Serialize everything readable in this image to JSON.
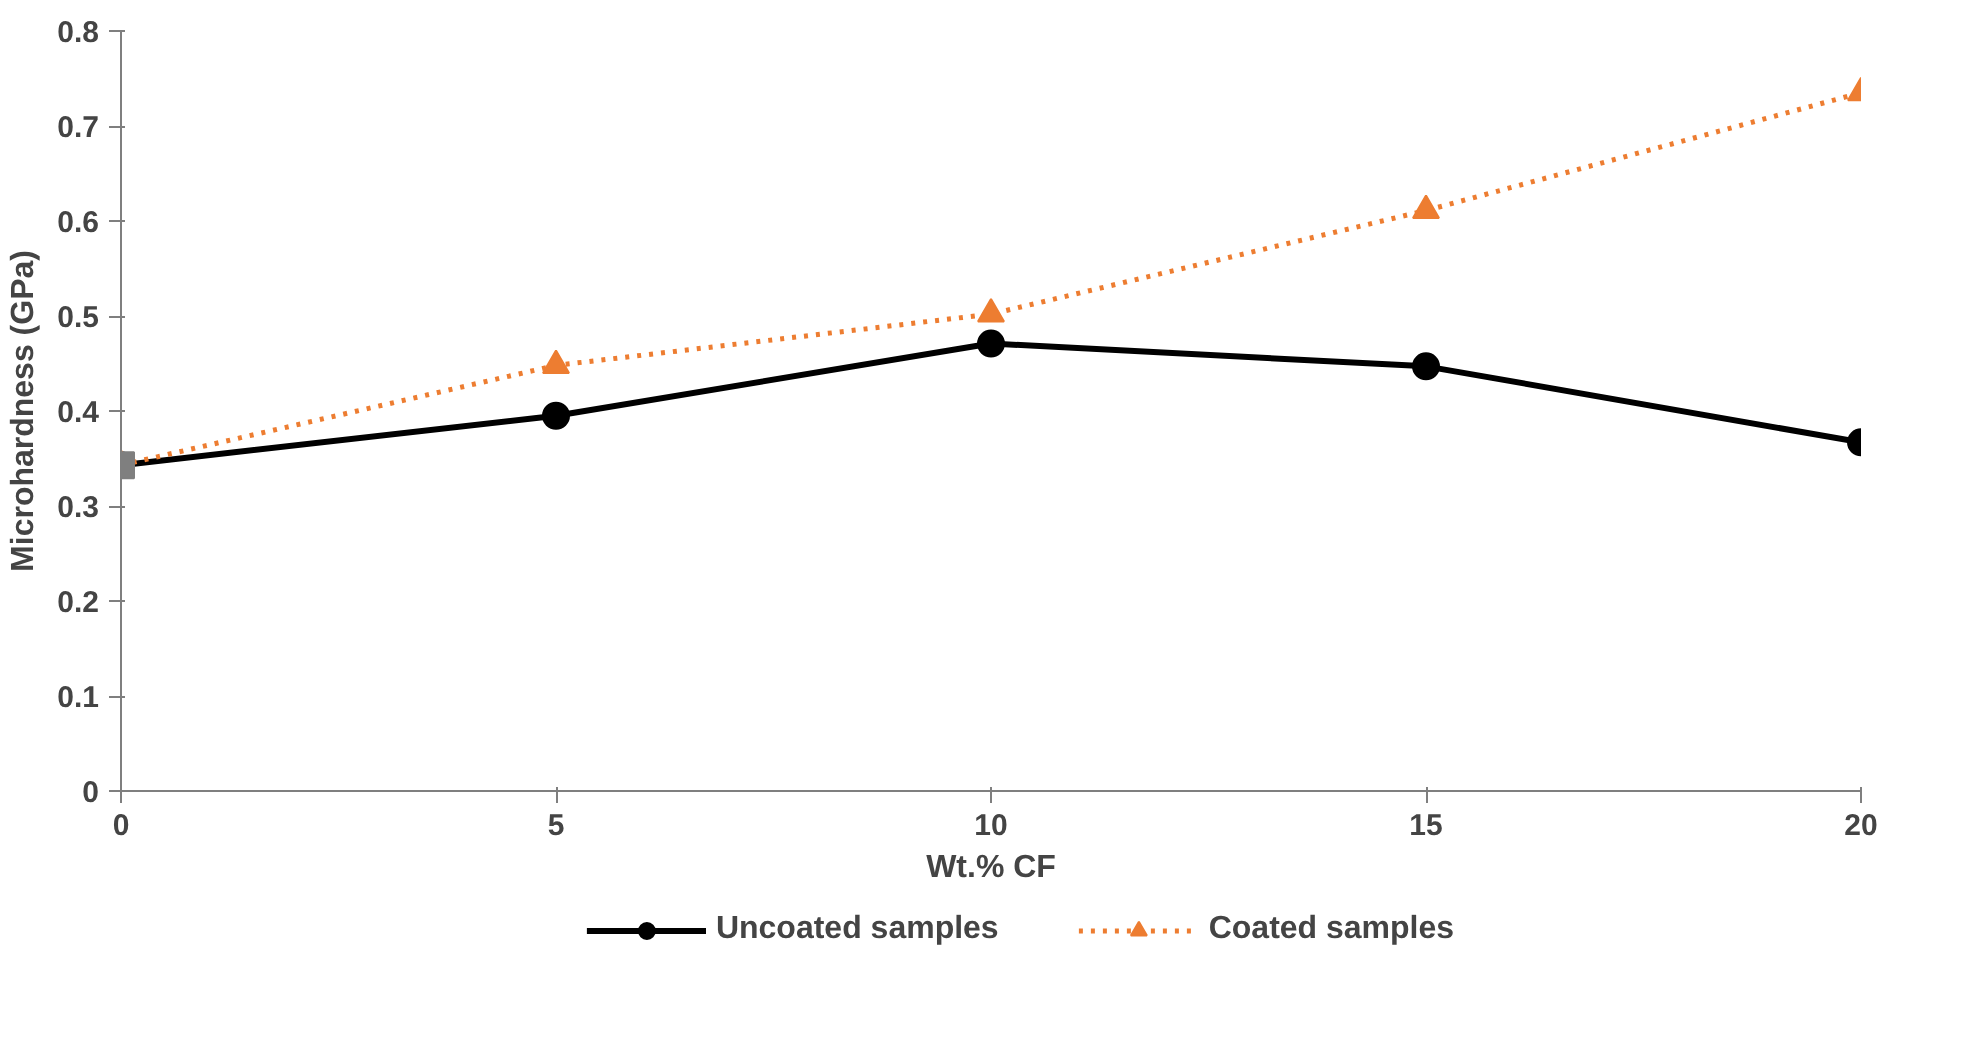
{
  "chart_data": {
    "type": "line",
    "xlabel": "Wt.% CF",
    "ylabel": "Microhardness (GPa)",
    "xlim": [
      0,
      20
    ],
    "ylim": [
      0,
      0.8
    ],
    "xticks": [
      0,
      5,
      10,
      15,
      20
    ],
    "yticks": [
      0,
      0.1,
      0.2,
      0.3,
      0.4,
      0.5,
      0.6,
      0.7,
      0.8
    ],
    "grid": false,
    "legend": "bottom",
    "series": [
      {
        "name": "Uncoated samples",
        "color": "#000000",
        "x": [
          0,
          5,
          10,
          15,
          20
        ],
        "values": [
          0.343,
          0.395,
          0.471,
          0.447,
          0.367
        ],
        "marker": "circle",
        "line_style": "solid"
      },
      {
        "name": "Coated samples",
        "color": "#ed7d31",
        "x": [
          0,
          5,
          10,
          15,
          20
        ],
        "values": [
          0.343,
          0.448,
          0.502,
          0.611,
          0.735
        ],
        "marker": "triangle",
        "line_style": "dotted"
      },
      {
        "type": "scatter",
        "color": "#7f7f7f",
        "x": [
          0
        ],
        "values": [
          0.343
        ],
        "marker": "square"
      }
    ]
  }
}
